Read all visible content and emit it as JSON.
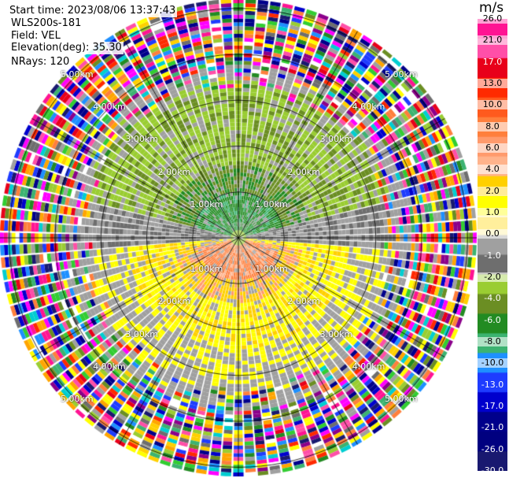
{
  "header": {
    "start_time": "Start time: 2023/08/06 13:37:43",
    "site": "WLS200s-181",
    "field": "Field: VEL",
    "elevation": "Elevation(deg): 35.30",
    "nrays": "NRays: 120"
  },
  "colorbar": {
    "unit": "m/s",
    "ticks": [
      "26.0",
      "21.0",
      "17.0",
      "13.0",
      "10.0",
      "8.0",
      "6.0",
      "4.0",
      "2.0",
      "1.0",
      "0.0",
      "-1.0",
      "-2.0",
      "-4.0",
      "-6.0",
      "-8.0",
      "-10.0",
      "-13.0",
      "-17.0",
      "-21.0",
      "-26.0",
      "-30.0"
    ],
    "colors": [
      "#ff1493",
      "#ff4fa8",
      "#e8001a",
      "#ff2a00",
      "#ff5a1e",
      "#ff7f3c",
      "#ff9a6c",
      "#ffb38c",
      "#ffd000",
      "#ffff00",
      "#ffef9c",
      "#a0a0a0",
      "#6e6e6e",
      "#9acd32",
      "#6b8e23",
      "#228b22",
      "#3cb371",
      "#1e90ff",
      "#1e3cff",
      "#0000cd",
      "#00008b",
      "#000080",
      "#191970"
    ]
  },
  "chart_data": {
    "type": "polar-ppi",
    "field": "VEL",
    "unit": "m/s",
    "range_rings_km": [
      1.0,
      2.0,
      3.0,
      4.0,
      5.0
    ],
    "ring_labels": [
      "1.00km",
      "2.00km",
      "3.00km",
      "4.00km",
      "5.00km"
    ],
    "nrays": 120,
    "description_regions": [
      {
        "sector": "north (near range)",
        "velocity_band": "-6.0 to -2.0"
      },
      {
        "sector": "south (near range)",
        "velocity_band": "2.0 to 6.0"
      },
      {
        "sector": "outer range",
        "velocity_band": "noise (-30.0 to 26.0)"
      }
    ]
  }
}
